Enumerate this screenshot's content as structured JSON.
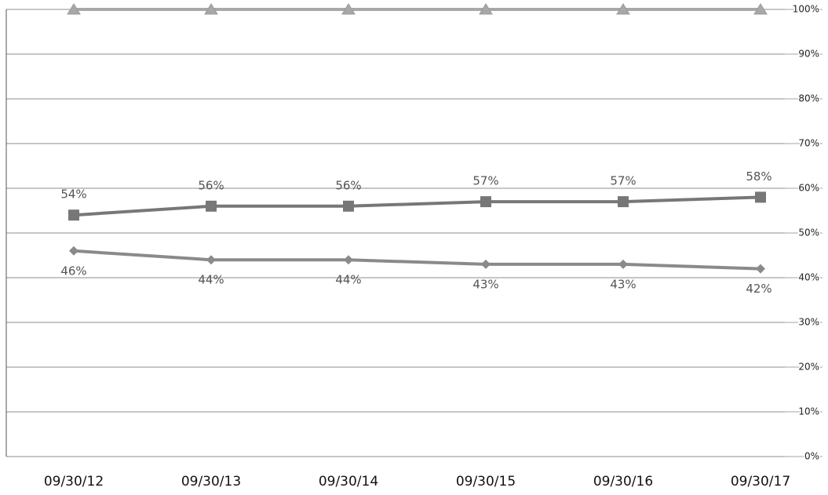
{
  "chart_data": {
    "type": "line",
    "categories": [
      "09/30/12",
      "09/30/13",
      "09/30/14",
      "09/30/15",
      "09/30/16",
      "09/30/17"
    ],
    "series": [
      {
        "color": "#a8a8a8",
        "marker": "triangle",
        "values": [
          100,
          100,
          100,
          100,
          100,
          100
        ]
      },
      {
        "color": "#777777",
        "marker": "square",
        "values": [
          54,
          56,
          56,
          57,
          57,
          58
        ],
        "value_labels": [
          "54%",
          "56%",
          "56%",
          "57%",
          "57%",
          "58%"
        ]
      },
      {
        "color": "#8a8a8a",
        "marker": "diamond",
        "values": [
          46,
          44,
          44,
          43,
          43,
          42
        ],
        "value_labels": [
          "46%",
          "44%",
          "44%",
          "43%",
          "43%",
          "42%"
        ]
      }
    ],
    "ylim": [
      0,
      100
    ],
    "yticks": [
      {
        "value": 0,
        "label": "0%"
      },
      {
        "value": 10,
        "label": "10%"
      },
      {
        "value": 20,
        "label": "20%"
      },
      {
        "value": 30,
        "label": "30%"
      },
      {
        "value": 40,
        "label": "40%"
      },
      {
        "value": 50,
        "label": "50%"
      },
      {
        "value": 60,
        "label": "60%"
      },
      {
        "value": 70,
        "label": "70%"
      },
      {
        "value": 80,
        "label": "80%"
      },
      {
        "value": 90,
        "label": "90%"
      },
      {
        "value": 100,
        "label": "100%"
      }
    ],
    "grid": true
  }
}
